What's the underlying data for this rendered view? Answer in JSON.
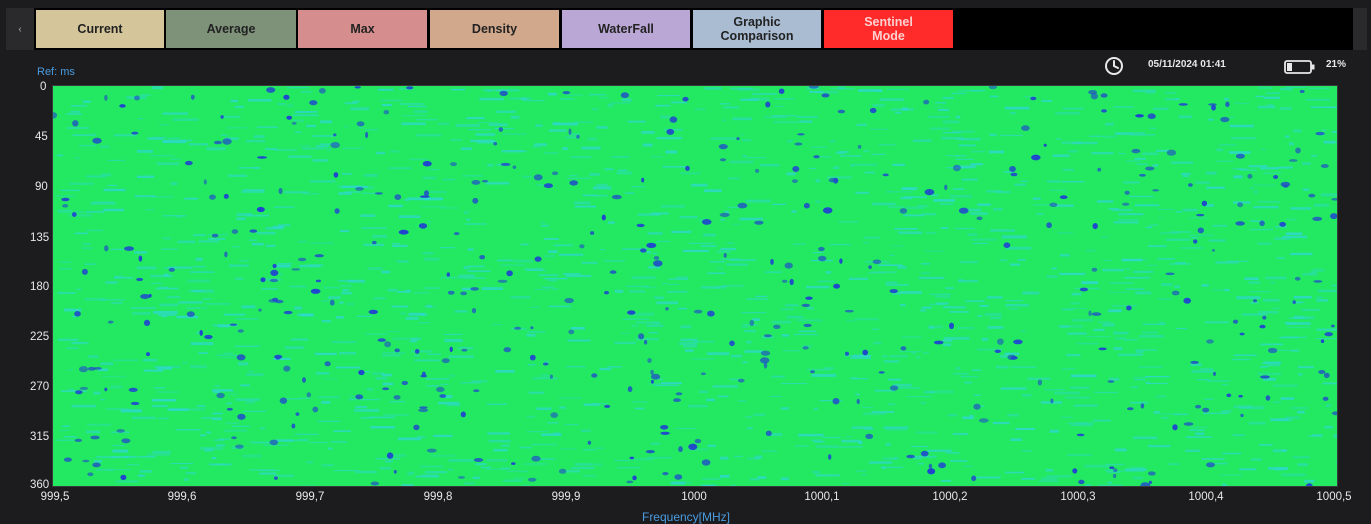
{
  "toolbar": {
    "back_icon": "chevron-left-icon",
    "tabs": [
      {
        "label": "Current",
        "color": "#d4c69a"
      },
      {
        "label": "Average",
        "color": "#7e9279"
      },
      {
        "label": "Max",
        "color": "#d68d8d"
      },
      {
        "label": "Density",
        "color": "#d2a88c"
      },
      {
        "label": "WaterFall",
        "color": "#bba7d6"
      },
      {
        "label": "Graphic\nComparison",
        "color": "#a9bcd2"
      },
      {
        "label": "Sentinel\nMode",
        "color": "#ff2a2a"
      }
    ]
  },
  "status": {
    "datetime": "05/11/2024 01:41",
    "battery": "21%"
  },
  "plot": {
    "ref_label": "Ref: ms",
    "x_axis_label": "Frequency[MHz]",
    "y_ticks": [
      "0",
      "45",
      "90",
      "135",
      "180",
      "225",
      "270",
      "315",
      "360"
    ],
    "x_ticks": [
      "999,5",
      "999,6",
      "999,7",
      "999,8",
      "999,9",
      "1000",
      "1000,1",
      "1000,2",
      "1000,3",
      "1000,4",
      "1000,5"
    ],
    "colors": {
      "base": "#22e862",
      "mid": "#2fd8d0",
      "low": "#2044d0",
      "label": "#4a9be0"
    }
  }
}
